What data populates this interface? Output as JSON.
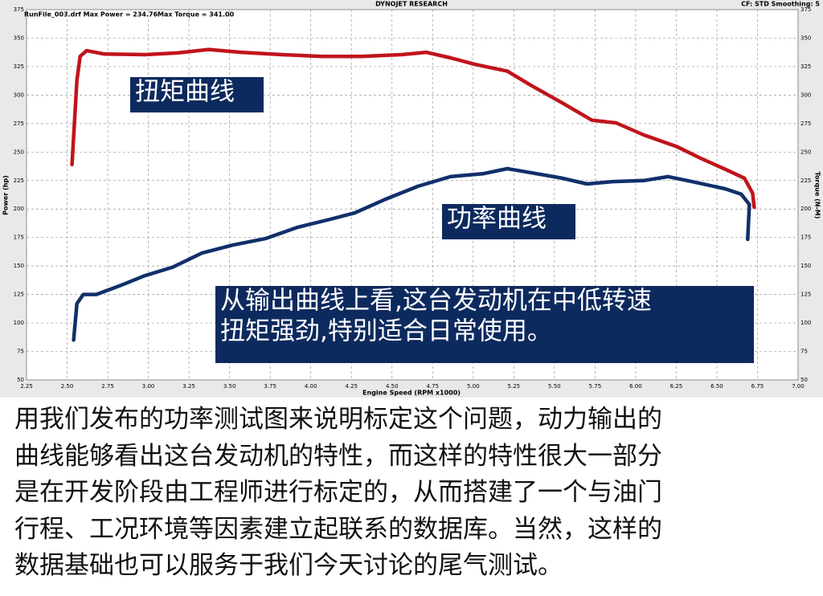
{
  "chart_data": {
    "type": "line",
    "title": "DYNOJET RESEARCH",
    "subtitle": "CF: STD  Smoothing: 5",
    "run_info": "RunFile_003.drf Max Power = 234.76",
    "max_torque": "Max Torque = 341.00",
    "xlabel": "Engine Speed (RPM x1000)",
    "ylabel": "Power (hp)",
    "y2label": "Torque (N-M)",
    "xlim": [
      2.25,
      7.0
    ],
    "xticks": [
      {
        "value": 2.25,
        "label": "2.25"
      },
      {
        "value": 2.5,
        "label": "2.50"
      },
      {
        "value": 2.75,
        "label": "2.75"
      },
      {
        "value": 3.0,
        "label": "3.00"
      },
      {
        "value": 3.25,
        "label": "3.25"
      },
      {
        "value": 3.5,
        "label": "3.50"
      },
      {
        "value": 3.75,
        "label": "3.75"
      },
      {
        "value": 4.0,
        "label": "4.00"
      },
      {
        "value": 4.25,
        "label": "4.25"
      },
      {
        "value": 4.5,
        "label": "4.50"
      },
      {
        "value": 4.75,
        "label": "4.75"
      },
      {
        "value": 5.0,
        "label": "5.00"
      },
      {
        "value": 5.25,
        "label": "5.25"
      },
      {
        "value": 5.5,
        "label": "5.50"
      },
      {
        "value": 5.75,
        "label": "5.75"
      },
      {
        "value": 6.0,
        "label": "6.00"
      },
      {
        "value": 6.25,
        "label": "6.25"
      },
      {
        "value": 6.5,
        "label": "6.50"
      },
      {
        "value": 6.75,
        "label": "6.75"
      },
      {
        "value": 7.0,
        "label": "7.00"
      }
    ],
    "ylim": [
      50,
      375
    ],
    "yticks": [
      50,
      75,
      100,
      125,
      150,
      175,
      200,
      225,
      250,
      275,
      300,
      325,
      350,
      375
    ],
    "y2lim": [
      50,
      375
    ],
    "y2ticks": [
      50,
      75,
      100,
      125,
      150,
      175,
      200,
      225,
      250,
      275,
      300,
      325,
      350,
      375
    ],
    "grid": true,
    "series": [
      {
        "name": "扭矩曲线",
        "color": "#c0141c",
        "axis": "y2",
        "x": [
          2.53,
          2.56,
          2.58,
          2.62,
          2.73,
          2.98,
          3.18,
          3.37,
          3.57,
          3.82,
          4.07,
          4.31,
          4.56,
          4.71,
          4.86,
          5.01,
          5.21,
          5.35,
          5.55,
          5.73,
          5.88,
          6.05,
          6.25,
          6.4,
          6.55,
          6.67,
          6.72,
          6.73
        ],
        "values": [
          239,
          313,
          334,
          339,
          336,
          335.5,
          337,
          340,
          337.6,
          335.5,
          334,
          334,
          335.5,
          337.6,
          332.7,
          327,
          321,
          309,
          293,
          278,
          275.6,
          265,
          255,
          244.6,
          235,
          227,
          214,
          201.6
        ]
      },
      {
        "name": "功率曲线",
        "color": "#10306a",
        "x": [
          2.54,
          2.56,
          2.6,
          2.68,
          2.83,
          2.98,
          3.15,
          3.33,
          3.52,
          3.72,
          3.92,
          4.12,
          4.27,
          4.46,
          4.66,
          4.86,
          5.06,
          5.21,
          5.35,
          5.55,
          5.7,
          5.85,
          6.05,
          6.2,
          6.35,
          6.55,
          6.65,
          6.7,
          6.69
        ],
        "values": [
          85,
          117,
          125,
          125,
          133,
          141.6,
          149,
          161.4,
          168.4,
          174,
          184,
          191,
          196.6,
          208.6,
          220,
          228.4,
          231,
          235.4,
          232,
          227,
          222,
          224,
          225,
          228.4,
          224,
          217.8,
          213,
          204,
          173.4
        ]
      }
    ],
    "note_lines": [
      "从输出曲线上看,这台发动机在中低转速",
      "扭矩强劲,特别适合日常使用。"
    ]
  },
  "paragraph_lines": [
    "用我们发布的功率测试图来说明标定这个问题，动力输出的",
    "曲线能够看出这台发动机的特性，而这样的特性很大一部分",
    "是在开发阶段由工程师进行标定的，从而搭建了一个与油门",
    "行程、工况环境等因素建立起联系的数据库。当然，这样的",
    "数据基础也可以服务于我们今天讨论的尾气测试。"
  ]
}
